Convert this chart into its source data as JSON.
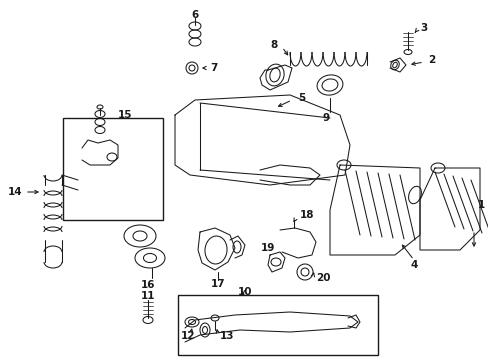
{
  "bg_color": "#ffffff",
  "line_color": "#1a1a1a",
  "fig_width": 4.89,
  "fig_height": 3.6,
  "dpi": 100,
  "fs": 7.5,
  "lw": 0.75
}
